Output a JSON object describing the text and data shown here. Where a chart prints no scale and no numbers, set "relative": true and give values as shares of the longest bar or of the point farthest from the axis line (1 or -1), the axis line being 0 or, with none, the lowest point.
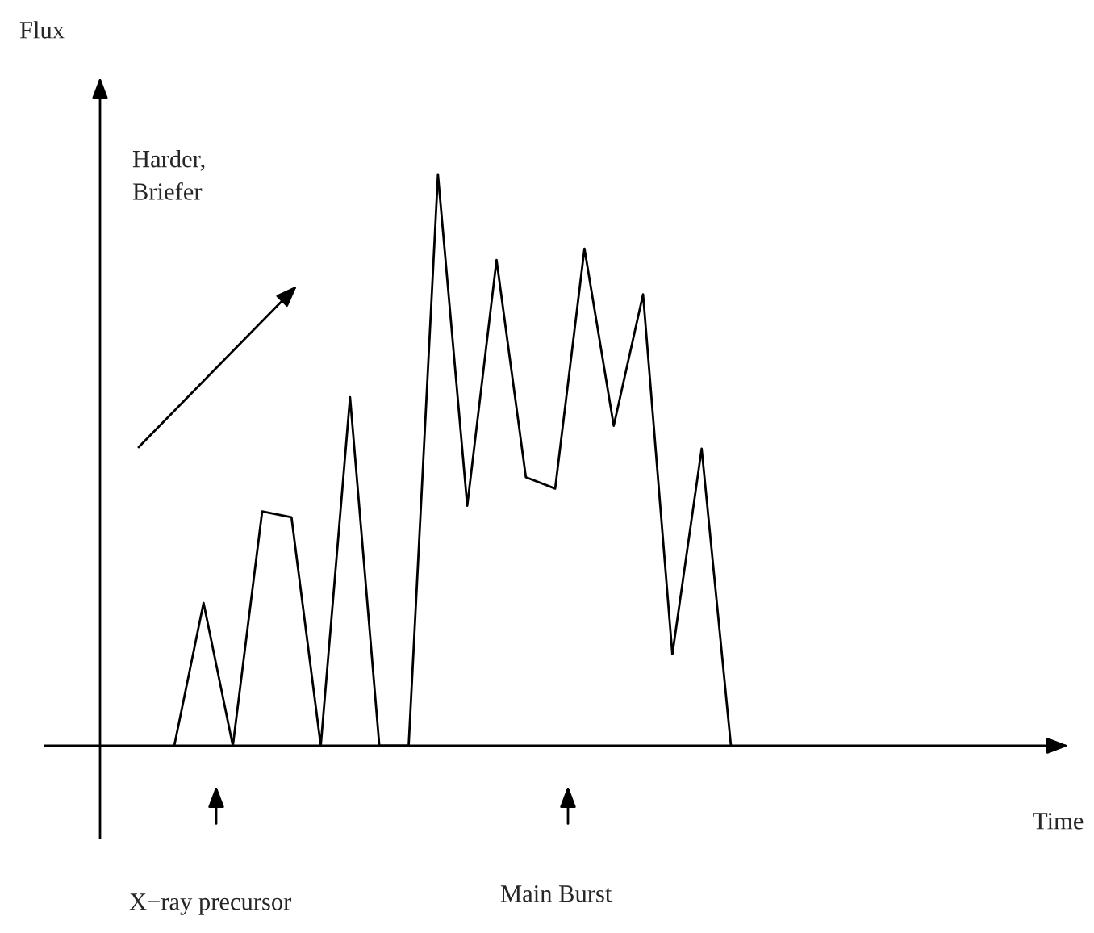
{
  "chart_data": {
    "type": "line",
    "relative": true,
    "categories": [
      null,
      null,
      null,
      null,
      null,
      null,
      null,
      null,
      null,
      null,
      null,
      null,
      null,
      null,
      null,
      null,
      null,
      null,
      null,
      null
    ],
    "series": [
      {
        "color": "#000000",
        "values": [
          0,
          0.25,
          0,
          0.41,
          0.4,
          0,
          0.61,
          0,
          0,
          1,
          0.42,
          0.85,
          0.47,
          0.45,
          0.87,
          0.56,
          0.79,
          0.16,
          0.52,
          0
        ]
      }
    ],
    "annotations": [
      "Harder,\nBriefer",
      "X−ray precursor",
      "Main Burst",
      "Flux",
      "Time"
    ],
    "legend": false,
    "marker": "none",
    "line_style": "solid"
  }
}
